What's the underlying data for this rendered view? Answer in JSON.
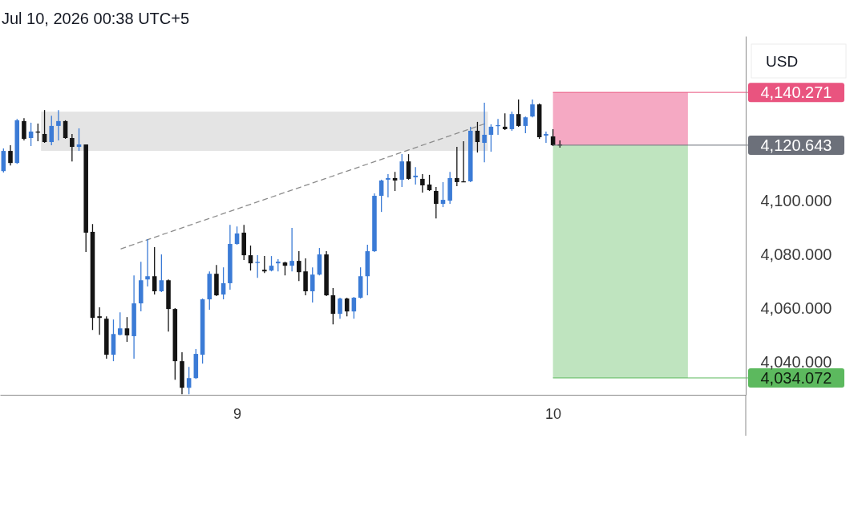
{
  "chart_data": {
    "type": "candlestick",
    "title": "Jul 10, 2026 00:38 UTC+5",
    "ylabel": "USD",
    "x": [
      8.261,
      8.283,
      8.304,
      8.326,
      8.348,
      8.37,
      8.391,
      8.413,
      8.435,
      8.457,
      8.478,
      8.5,
      8.522,
      8.543,
      8.565,
      8.587,
      8.609,
      8.63,
      8.652,
      8.674,
      8.696,
      8.717,
      8.739,
      8.761,
      8.783,
      8.804,
      8.826,
      8.848,
      8.87,
      8.891,
      8.913,
      8.935,
      8.957,
      8.978,
      9,
      9.022,
      9.043,
      9.065,
      9.087,
      9.109,
      9.13,
      9.152,
      9.174,
      9.196,
      9.217,
      9.239,
      9.261,
      9.283,
      9.304,
      9.326,
      9.348,
      9.37,
      9.391,
      9.413,
      9.435,
      9.457,
      9.478,
      9.5,
      9.522,
      9.543,
      9.565,
      9.587,
      9.609,
      9.63,
      9.652,
      9.674,
      9.696,
      9.717,
      9.739,
      9.761,
      9.783,
      9.804,
      9.826,
      9.848,
      9.87,
      9.891,
      9.913,
      9.935,
      9.957,
      9.978,
      10,
      10.022
    ],
    "ohlc": [
      [
        4111.0,
        4119.4,
        4110.5,
        4118.5
      ],
      [
        4118.5,
        4120.6,
        4113.1,
        4114.0
      ],
      [
        4114.0,
        4130.4,
        4113.7,
        4129.9
      ],
      [
        4129.6,
        4130.7,
        4122.4,
        4123.0
      ],
      [
        4123.3,
        4129.0,
        4120.3,
        4125.7
      ],
      [
        4125.7,
        4128.7,
        4122.1,
        4125.4
      ],
      [
        4124.8,
        4133.7,
        4121.5,
        4121.8
      ],
      [
        4121.8,
        4131.6,
        4120.6,
        4127.8
      ],
      [
        4127.8,
        4133.7,
        4122.4,
        4129.6
      ],
      [
        4129.6,
        4129.9,
        4123.0,
        4123.3
      ],
      [
        4123.3,
        4124.8,
        4114.6,
        4120.0
      ],
      [
        4120.0,
        4126.9,
        4118.5,
        4120.9
      ],
      [
        4120.9,
        4120.9,
        4080.9,
        4088.1
      ],
      [
        4088.4,
        4091.3,
        4051.9,
        4056.4
      ],
      [
        4057.0,
        4060.3,
        4050.1,
        4056.4
      ],
      [
        4056.1,
        4057.0,
        4041.2,
        4042.7
      ],
      [
        4042.7,
        4055.8,
        4040.3,
        4050.4
      ],
      [
        4050.1,
        4058.5,
        4049.9,
        4052.5
      ],
      [
        4052.5,
        4056.7,
        4047.5,
        4049.9
      ],
      [
        4049.6,
        4072.2,
        4041.2,
        4061.8
      ],
      [
        4061.8,
        4077.3,
        4058.8,
        4070.4
      ],
      [
        4070.7,
        4085.7,
        4068.1,
        4071.9
      ],
      [
        4071.9,
        4082.7,
        4065.1,
        4066.3
      ],
      [
        4066.3,
        4080.0,
        4066.0,
        4070.4
      ],
      [
        4070.4,
        4070.7,
        4051.3,
        4059.7
      ],
      [
        4059.7,
        4060.0,
        4033.4,
        4040.3
      ],
      [
        4040.3,
        4043.6,
        4028.0,
        4030.4
      ],
      [
        4030.4,
        4038.2,
        4028.0,
        4034.0
      ],
      [
        4034.0,
        4044.8,
        4033.7,
        4043.0
      ],
      [
        4042.7,
        4063.6,
        4039.4,
        4063.3
      ],
      [
        4063.3,
        4073.7,
        4059.4,
        4072.8
      ],
      [
        4072.8,
        4076.1,
        4064.5,
        4064.8
      ],
      [
        4065.1,
        4075.2,
        4063.3,
        4069.3
      ],
      [
        4069.3,
        4091.0,
        4066.9,
        4083.9
      ],
      [
        4083.9,
        4090.4,
        4083.6,
        4087.8
      ],
      [
        4088.1,
        4091.0,
        4077.9,
        4079.7
      ],
      [
        4079.7,
        4083.3,
        4074.0,
        4076.7
      ],
      [
        4077.0,
        4079.7,
        4071.3,
        4077.2
      ],
      [
        4074.3,
        4079.4,
        4073.1,
        4073.7
      ],
      [
        4074.0,
        4079.4,
        4073.7,
        4075.8
      ],
      [
        4076.7,
        4078.2,
        4073.7,
        4077.3
      ],
      [
        4077.0,
        4077.3,
        4072.2,
        4075.8
      ],
      [
        4075.8,
        4089.9,
        4073.7,
        4077.6
      ],
      [
        4077.6,
        4081.2,
        4070.1,
        4073.4
      ],
      [
        4073.7,
        4078.5,
        4064.8,
        4066.3
      ],
      [
        4066.3,
        4075.2,
        4062.1,
        4072.5
      ],
      [
        4072.5,
        4082.4,
        4072.2,
        4080.0
      ],
      [
        4080.0,
        4081.2,
        4064.5,
        4064.8
      ],
      [
        4064.8,
        4067.5,
        4054.0,
        4057.9
      ],
      [
        4057.9,
        4063.9,
        4056.1,
        4063.6
      ],
      [
        4063.6,
        4063.9,
        4057.0,
        4058.8
      ],
      [
        4058.8,
        4064.2,
        4056.1,
        4063.9
      ],
      [
        4063.9,
        4075.2,
        4063.6,
        4071.9
      ],
      [
        4071.9,
        4083.6,
        4064.8,
        4081.2
      ],
      [
        4081.2,
        4102.7,
        4080.9,
        4101.8
      ],
      [
        4101.8,
        4107.8,
        4095.8,
        4107.5
      ],
      [
        4107.8,
        4109.9,
        4101.2,
        4108.4
      ],
      [
        4108.4,
        4110.7,
        4103.6,
        4107.5
      ],
      [
        4107.8,
        4117.3,
        4105.1,
        4114.6
      ],
      [
        4114.6,
        4117.3,
        4107.8,
        4108.1
      ],
      [
        4108.7,
        4112.5,
        4106.0,
        4109.3
      ],
      [
        4108.1,
        4109.9,
        4103.0,
        4105.7
      ],
      [
        4106.0,
        4109.6,
        4103.6,
        4103.9
      ],
      [
        4103.6,
        4105.1,
        4093.4,
        4098.8
      ],
      [
        4098.8,
        4106.9,
        4097.6,
        4100.3
      ],
      [
        4100.0,
        4110.7,
        4098.8,
        4108.4
      ],
      [
        4108.4,
        4120.0,
        4105.4,
        4106.9
      ],
      [
        4107.2,
        4122.1,
        4106.9,
        4107.0
      ],
      [
        4107.2,
        4127.5,
        4106.9,
        4126.0
      ],
      [
        4126.0,
        4129.3,
        4117.9,
        4121.8
      ],
      [
        4121.5,
        4136.4,
        4114.3,
        4124.5
      ],
      [
        4124.5,
        4128.4,
        4118.2,
        4127.5
      ],
      [
        4127.8,
        4130.4,
        4124.5,
        4128.1
      ],
      [
        4127.5,
        4132.5,
        4126.3,
        4126.6
      ],
      [
        4126.6,
        4133.1,
        4126.0,
        4132.2
      ],
      [
        4132.2,
        4137.6,
        4127.5,
        4127.8
      ],
      [
        4127.8,
        4131.3,
        4125.1,
        4131.0
      ],
      [
        4131.3,
        4137.6,
        4131.0,
        4135.8
      ],
      [
        4135.8,
        4136.1,
        4123.0,
        4123.6
      ],
      [
        4124.2,
        4125.7,
        4121.5,
        4124.8
      ],
      [
        4123.9,
        4126.6,
        4120.3,
        4120.6
      ],
      [
        4120.9,
        4122.4,
        4119.7,
        4120.643
      ]
    ],
    "colors": [
      "#3b7bd6",
      "#141414",
      "#3b7bd6",
      "#141414",
      "#3b7bd6",
      "#141414",
      "#141414",
      "#3b7bd6",
      "#3b7bd6",
      "#141414",
      "#141414",
      "#3b7bd6",
      "#141414",
      "#141414",
      "#141414",
      "#141414",
      "#3b7bd6",
      "#3b7bd6",
      "#141414",
      "#3b7bd6",
      "#3b7bd6",
      "#3b7bd6",
      "#141414",
      "#3b7bd6",
      "#141414",
      "#141414",
      "#141414",
      "#3b7bd6",
      "#3b7bd6",
      "#3b7bd6",
      "#3b7bd6",
      "#141414",
      "#3b7bd6",
      "#3b7bd6",
      "#3b7bd6",
      "#141414",
      "#141414",
      "#3b7bd6",
      "#141414",
      "#3b7bd6",
      "#3b7bd6",
      "#141414",
      "#3b7bd6",
      "#141414",
      "#141414",
      "#3b7bd6",
      "#3b7bd6",
      "#141414",
      "#141414",
      "#3b7bd6",
      "#141414",
      "#3b7bd6",
      "#3b7bd6",
      "#3b7bd6",
      "#3b7bd6",
      "#3b7bd6",
      "#3b7bd6",
      "#141414",
      "#3b7bd6",
      "#141414",
      "#3b7bd6",
      "#141414",
      "#141414",
      "#141414",
      "#3b7bd6",
      "#3b7bd6",
      "#141414",
      "#141414",
      "#3b7bd6",
      "#141414",
      "#3b7bd6",
      "#3b7bd6",
      "#3b7bd6",
      "#141414",
      "#3b7bd6",
      "#141414",
      "#3b7bd6",
      "#3b7bd6",
      "#141414",
      "#3b7bd6",
      "#141414",
      "#141414"
    ],
    "series": [
      {
        "type": "line",
        "x": [
          8.633,
          9.787
        ],
        "values": [
          4082.1,
          4128.7
        ],
        "color": "#8c8c8c",
        "line_style": "dashed"
      }
    ],
    "xlim": [
      8.25,
      10.61
    ],
    "xticks": [
      9,
      10
    ],
    "ylim": [
      4027.8,
      4161.2
    ],
    "yticks": [
      {
        "value": 4040,
        "label": "4,040.000"
      },
      {
        "value": 4060,
        "label": "4,060.000"
      },
      {
        "value": 4080,
        "label": "4,080.000"
      },
      {
        "value": 4100,
        "label": "4,100.000"
      }
    ],
    "bands": [
      {
        "axis": "y",
        "from": 4118.5,
        "to": 4133.1,
        "color": "#e4e4e4"
      },
      {
        "axis": "y",
        "from": 4120.643,
        "to": 4140.271,
        "color": "#f5a9c3"
      },
      {
        "axis": "y",
        "from": 4034.072,
        "to": 4120.643,
        "color": "#bfe4bf"
      }
    ],
    "ref_lines": [
      {
        "axis": "y",
        "value": 4140.271,
        "label": "4,140.271",
        "color": "#e9547f"
      },
      {
        "axis": "y",
        "value": 4120.643,
        "label": "4,120.643",
        "color": "#6c707a"
      },
      {
        "axis": "y",
        "value": 4034.072,
        "label": "4,034.072",
        "color": "#5cb95e"
      }
    ]
  }
}
